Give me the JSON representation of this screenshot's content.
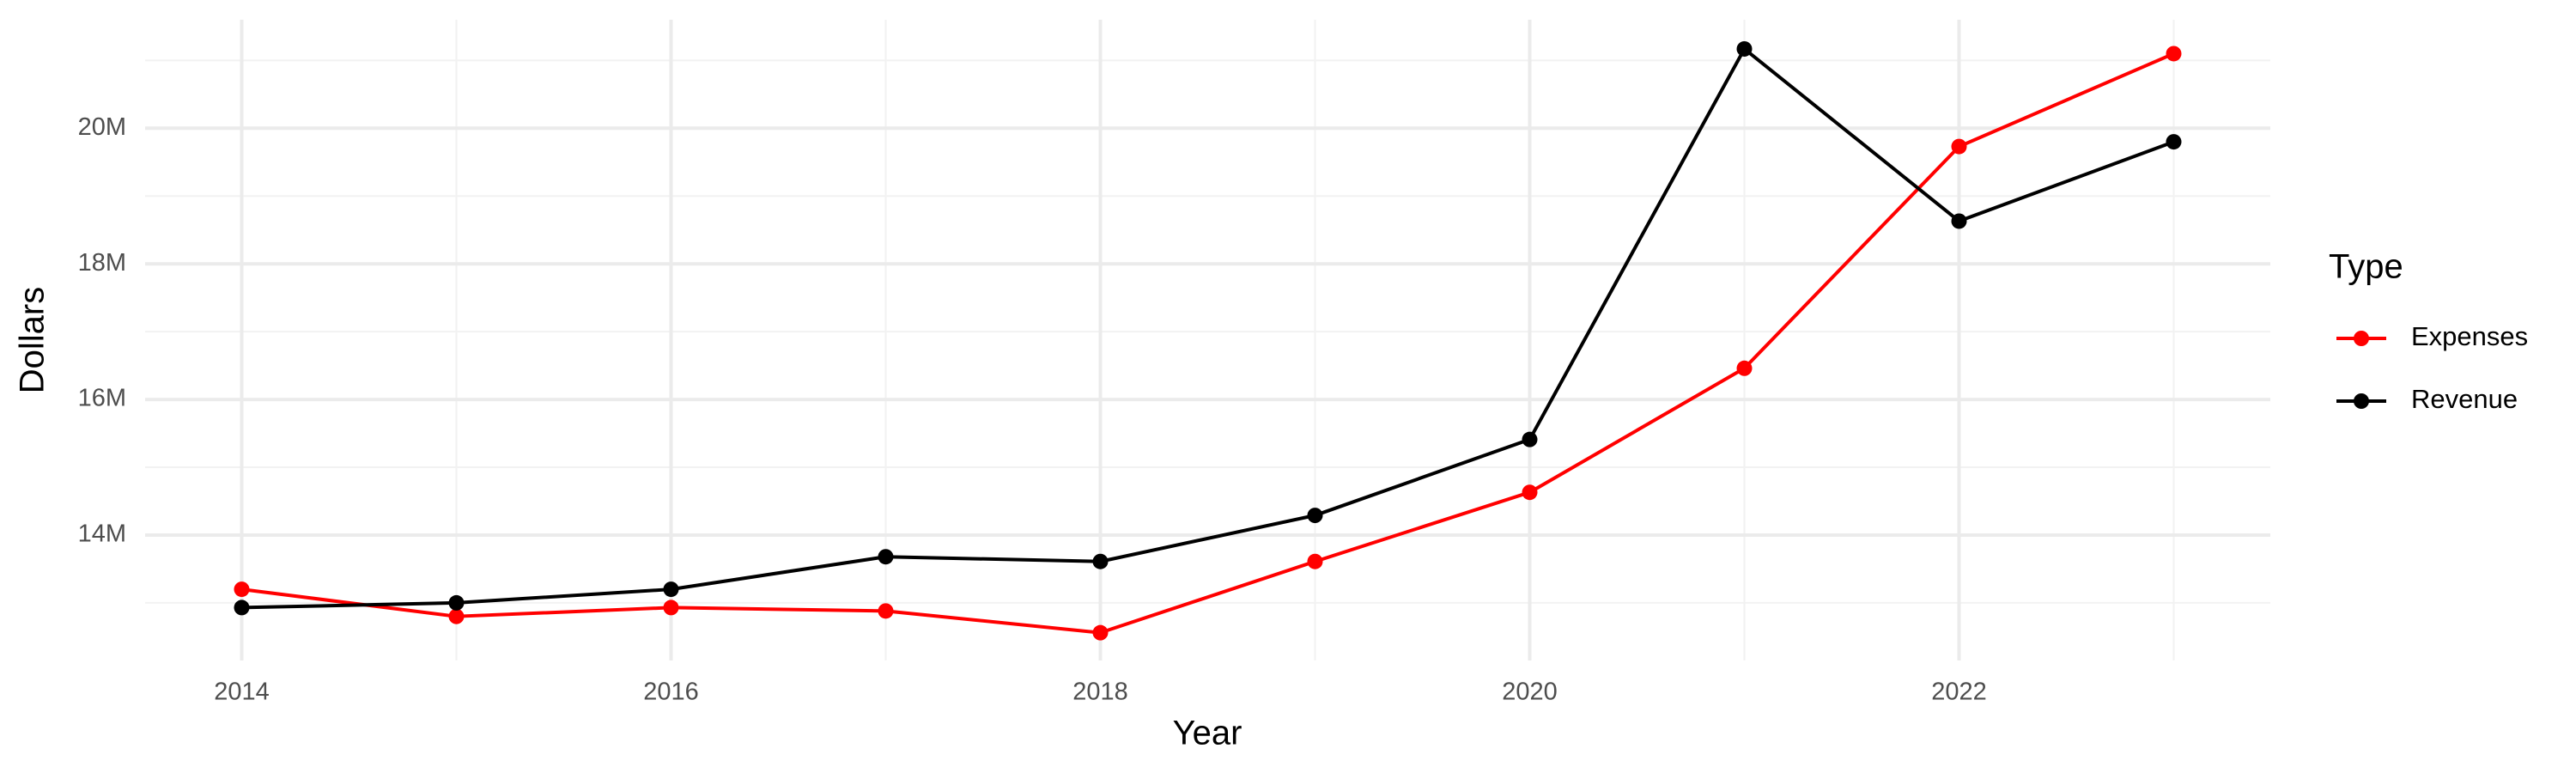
{
  "chart_data": {
    "type": "line",
    "x_label": "Year",
    "y_label": "Dollars",
    "legend_title": "Type",
    "x": [
      2014,
      2015,
      2016,
      2017,
      2018,
      2019,
      2020,
      2021,
      2022,
      2023
    ],
    "series": [
      {
        "name": "Expenses",
        "color": "#ff0000",
        "values": [
          13200000,
          12800000,
          12930000,
          12880000,
          12560000,
          13610000,
          14630000,
          16460000,
          19730000,
          21100000
        ]
      },
      {
        "name": "Revenue",
        "color": "#000000",
        "values": [
          12930000,
          13000000,
          13200000,
          13680000,
          13610000,
          14290000,
          15410000,
          21170000,
          18630000,
          19800000
        ]
      }
    ],
    "xlim": [
      2013.55,
      2023.45
    ],
    "xticks": [
      2014,
      2016,
      2018,
      2020,
      2022
    ],
    "ylim": [
      12150000,
      21600000
    ],
    "yticks": [
      {
        "value": 14000000,
        "label": "14M"
      },
      {
        "value": 16000000,
        "label": "16M"
      },
      {
        "value": 18000000,
        "label": "18M"
      },
      {
        "value": 20000000,
        "label": "20M"
      }
    ],
    "grid": true,
    "legend_position": "right"
  }
}
